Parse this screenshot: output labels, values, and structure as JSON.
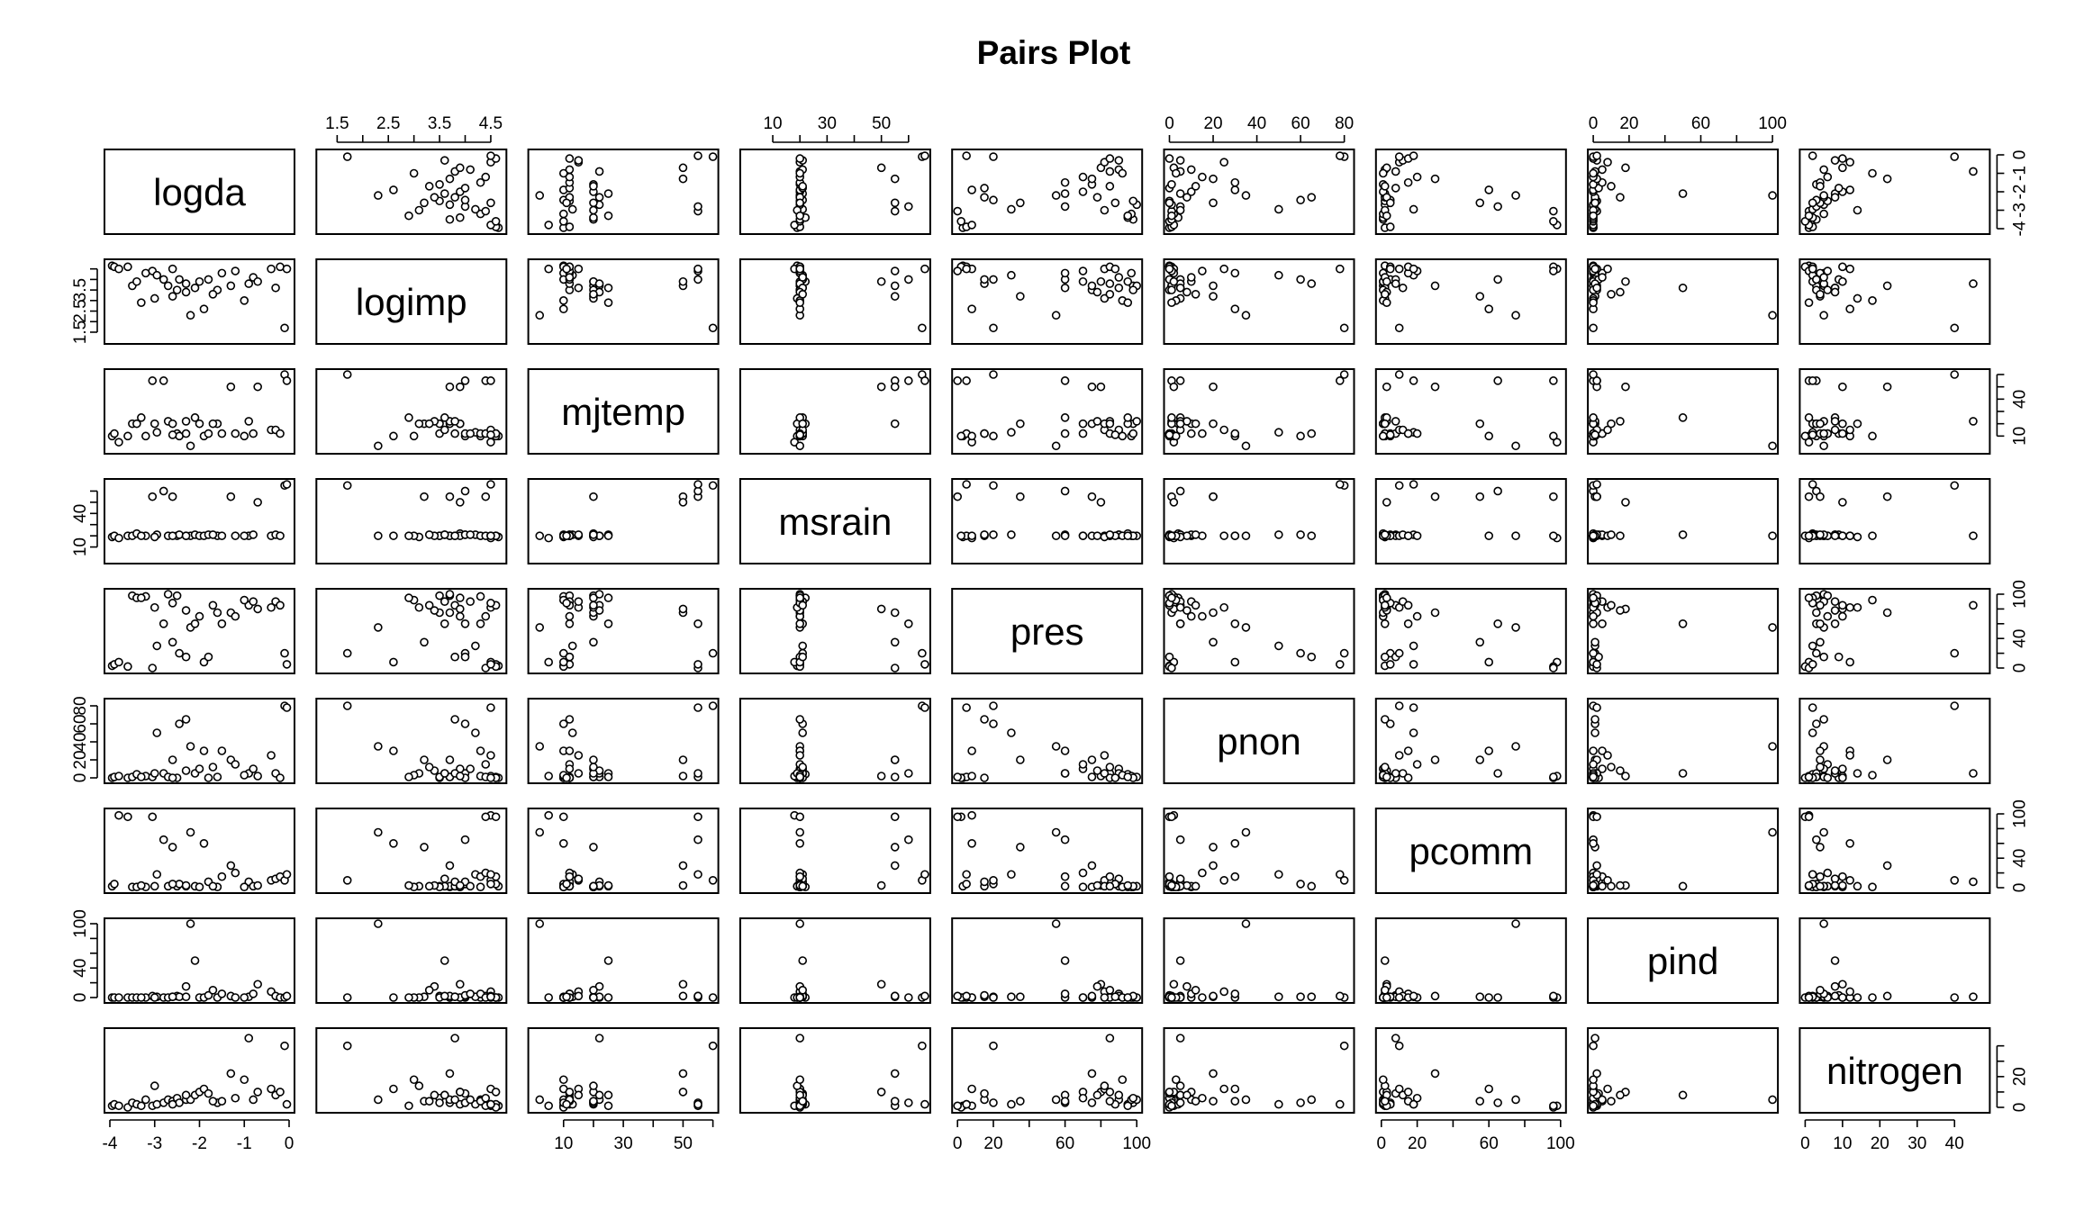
{
  "chart_data": {
    "type": "scatter",
    "title": "Pairs Plot",
    "variables": [
      "logda",
      "logimp",
      "mjtemp",
      "msrain",
      "pres",
      "pnon",
      "pcomm",
      "pind",
      "nitrogen"
    ],
    "axes": {
      "logda": {
        "range": [
          -4,
          0
        ],
        "ticks": [
          -4,
          -3,
          -2,
          -1,
          0
        ],
        "tick_labels": [
          "-4",
          "-3",
          "-2",
          "-1",
          "0"
        ]
      },
      "logimp": {
        "range": [
          1.2,
          4.7
        ],
        "ticks": [
          1.5,
          2,
          2.5,
          3,
          3.5,
          4,
          4.5
        ],
        "tick_labels": [
          "1.5",
          "",
          "2.5",
          "",
          "3.5",
          "",
          "4.5"
        ],
        "left_tick_labels": [
          "1.5",
          "",
          "2.5",
          "",
          "3.5",
          "",
          ""
        ]
      },
      "mjtemp": {
        "range": [
          0,
          60
        ],
        "ticks": [
          10,
          20,
          30,
          40,
          50,
          60
        ],
        "tick_labels": [
          "10",
          "",
          "30",
          "",
          "50",
          ""
        ],
        "right_tick_labels": [
          "10",
          "",
          "",
          "40",
          "",
          ""
        ]
      },
      "msrain": {
        "range": [
          0,
          66
        ],
        "ticks": [
          10,
          20,
          30,
          40,
          50,
          60
        ],
        "tick_labels": [
          "10",
          "",
          "30",
          "",
          "50",
          ""
        ],
        "left_tick_labels": [
          "10",
          "",
          "",
          "40",
          "",
          ""
        ]
      },
      "pres": {
        "range": [
          0,
          100
        ],
        "ticks": [
          0,
          20,
          40,
          60,
          80,
          100
        ],
        "tick_labels": [
          "0",
          "20",
          "",
          "60",
          "",
          "100"
        ],
        "right_tick_labels": [
          "0",
          "",
          "40",
          "",
          "",
          "100"
        ]
      },
      "pnon": {
        "range": [
          0,
          82
        ],
        "ticks": [
          0,
          20,
          40,
          60,
          80
        ],
        "tick_labels": [
          "0",
          "20",
          "40",
          "60",
          "80"
        ],
        "left_tick_labels": [
          "0",
          "20",
          "40",
          "60",
          "80"
        ]
      },
      "pcomm": {
        "range": [
          0,
          100
        ],
        "ticks": [
          0,
          20,
          40,
          60,
          80,
          100
        ],
        "tick_labels": [
          "0",
          "20",
          "",
          "60",
          "",
          "100"
        ],
        "right_tick_labels": [
          "0",
          "",
          "40",
          "",
          "",
          "100"
        ]
      },
      "pind": {
        "range": [
          0,
          100
        ],
        "ticks": [
          0,
          20,
          40,
          60,
          80,
          100
        ],
        "tick_labels": [
          "0",
          "20",
          "",
          "60",
          "",
          "100"
        ],
        "left_tick_labels": [
          "0",
          "",
          "40",
          "",
          "",
          "100"
        ]
      },
      "nitrogen": {
        "range": [
          0,
          48
        ],
        "ticks": [
          0,
          10,
          20,
          30,
          40
        ],
        "tick_labels": [
          "0",
          "10",
          "20",
          "30",
          "40"
        ],
        "right_tick_labels": [
          "0",
          "",
          "20",
          "",
          ""
        ]
      }
    },
    "observations": [
      {
        "logda": -3.95,
        "logimp": 4.65,
        "mjtemp": 10,
        "msrain": 19,
        "pres": 3,
        "pnon": 0,
        "pcomm": 2,
        "pind": 0,
        "nitrogen": 1
      },
      {
        "logda": -3.9,
        "logimp": 4.6,
        "mjtemp": 12,
        "msrain": 20,
        "pres": 5,
        "pnon": 1,
        "pcomm": 5,
        "pind": 0,
        "nitrogen": 2
      },
      {
        "logda": -3.8,
        "logimp": 4.5,
        "mjtemp": 5,
        "msrain": 18,
        "pres": 8,
        "pnon": 2,
        "pcomm": 98,
        "pind": 0,
        "nitrogen": 1
      },
      {
        "logda": -3.6,
        "logimp": 4.6,
        "mjtemp": 10,
        "msrain": 20,
        "pres": 2,
        "pnon": 0,
        "pcomm": 96,
        "pind": 0,
        "nitrogen": 0
      },
      {
        "logda": -3.5,
        "logimp": 3.7,
        "mjtemp": 20,
        "msrain": 20,
        "pres": 98,
        "pnon": 1,
        "pcomm": 1,
        "pind": 0,
        "nitrogen": 3
      },
      {
        "logda": -3.4,
        "logimp": 3.9,
        "mjtemp": 20,
        "msrain": 22,
        "pres": 95,
        "pnon": 4,
        "pcomm": 1,
        "pind": 0,
        "nitrogen": 2
      },
      {
        "logda": -3.2,
        "logimp": 4.3,
        "mjtemp": 10,
        "msrain": 20,
        "pres": 97,
        "pnon": 2,
        "pcomm": 1,
        "pind": 0,
        "nitrogen": 5
      },
      {
        "logda": -3.05,
        "logimp": 4.4,
        "mjtemp": 55,
        "msrain": 55,
        "pres": 0,
        "pnon": 1,
        "pcomm": 96,
        "pind": 2,
        "nitrogen": 1
      },
      {
        "logda": -2.95,
        "logimp": 4.2,
        "mjtemp": 13,
        "msrain": 21,
        "pres": 30,
        "pnon": 50,
        "pcomm": 18,
        "pind": 1,
        "nitrogen": 2
      },
      {
        "logda": -2.8,
        "logimp": 4.0,
        "mjtemp": 55,
        "msrain": 60,
        "pres": 60,
        "pnon": 5,
        "pcomm": 65,
        "pind": 0,
        "nitrogen": 3
      },
      {
        "logda": -2.7,
        "logimp": 3.7,
        "mjtemp": 22,
        "msrain": 20,
        "pres": 100,
        "pnon": 1,
        "pcomm": 2,
        "pind": 0,
        "nitrogen": 5
      },
      {
        "logda": -2.6,
        "logimp": 3.2,
        "mjtemp": 20,
        "msrain": 55,
        "pres": 35,
        "pnon": 20,
        "pcomm": 55,
        "pind": 1,
        "nitrogen": 4
      },
      {
        "logda": -2.5,
        "logimp": 3.5,
        "mjtemp": 12,
        "msrain": 20,
        "pres": 98,
        "pnon": 0,
        "pcomm": 2,
        "pind": 2,
        "nitrogen": 6
      },
      {
        "logda": -2.45,
        "logimp": 4.0,
        "mjtemp": 10,
        "msrain": 21,
        "pres": 20,
        "pnon": 60,
        "pcomm": 5,
        "pind": 1,
        "nitrogen": 3
      },
      {
        "logda": -2.3,
        "logimp": 3.8,
        "mjtemp": 12,
        "msrain": 20,
        "pres": 15,
        "pnon": 65,
        "pcomm": 2,
        "pind": 1,
        "nitrogen": 5
      },
      {
        "logda": -2.2,
        "logimp": 2.3,
        "mjtemp": 2,
        "msrain": 20,
        "pres": 55,
        "pnon": 35,
        "pcomm": 75,
        "pind": 100,
        "nitrogen": 5
      },
      {
        "logda": -2.1,
        "logimp": 3.6,
        "mjtemp": 25,
        "msrain": 21,
        "pres": 60,
        "pnon": 5,
        "pcomm": 2,
        "pind": 50,
        "nitrogen": 8
      },
      {
        "logda": -2.0,
        "logimp": 3.9,
        "mjtemp": 20,
        "msrain": 20,
        "pres": 70,
        "pnon": 10,
        "pcomm": 1,
        "pind": 0,
        "nitrogen": 10
      },
      {
        "logda": -1.9,
        "logimp": 2.6,
        "mjtemp": 10,
        "msrain": 20,
        "pres": 8,
        "pnon": 30,
        "pcomm": 60,
        "pind": 0,
        "nitrogen": 12
      },
      {
        "logda": -1.8,
        "logimp": 4.0,
        "mjtemp": 12,
        "msrain": 21,
        "pres": 15,
        "pnon": 0,
        "pcomm": 8,
        "pind": 3,
        "nitrogen": 9
      },
      {
        "logda": -1.6,
        "logimp": 3.5,
        "mjtemp": 20,
        "msrain": 20,
        "pres": 75,
        "pnon": 1,
        "pcomm": 1,
        "pind": 0,
        "nitrogen": 3
      },
      {
        "logda": -1.5,
        "logimp": 4.3,
        "mjtemp": 12,
        "msrain": 20,
        "pres": 60,
        "pnon": 30,
        "pcomm": 15,
        "pind": 5,
        "nitrogen": 4
      },
      {
        "logda": -1.3,
        "logimp": 3.7,
        "mjtemp": 50,
        "msrain": 55,
        "pres": 75,
        "pnon": 20,
        "pcomm": 30,
        "pind": 2,
        "nitrogen": 22
      },
      {
        "logda": -1.2,
        "logimp": 4.4,
        "mjtemp": 12,
        "msrain": 20,
        "pres": 70,
        "pnon": 15,
        "pcomm": 20,
        "pind": 0,
        "nitrogen": 6
      },
      {
        "logda": -0.9,
        "logimp": 3.8,
        "mjtemp": 22,
        "msrain": 20,
        "pres": 85,
        "pnon": 5,
        "pcomm": 8,
        "pind": 1,
        "nitrogen": 45
      },
      {
        "logda": -0.8,
        "logimp": 4.1,
        "mjtemp": 12,
        "msrain": 21,
        "pres": 90,
        "pnon": 10,
        "pcomm": 2,
        "pind": 5,
        "nitrogen": 5
      },
      {
        "logda": -0.7,
        "logimp": 3.9,
        "mjtemp": 50,
        "msrain": 50,
        "pres": 80,
        "pnon": 2,
        "pcomm": 3,
        "pind": 18,
        "nitrogen": 10
      },
      {
        "logda": -0.4,
        "logimp": 4.5,
        "mjtemp": 15,
        "msrain": 20,
        "pres": 82,
        "pnon": 25,
        "pcomm": 10,
        "pind": 8,
        "nitrogen": 12
      },
      {
        "logda": -0.3,
        "logimp": 3.6,
        "mjtemp": 15,
        "msrain": 21,
        "pres": 90,
        "pnon": 5,
        "pcomm": 12,
        "pind": 2,
        "nitrogen": 8
      },
      {
        "logda": -0.2,
        "logimp": 4.6,
        "mjtemp": 12,
        "msrain": 20,
        "pres": 85,
        "pnon": 0,
        "pcomm": 15,
        "pind": 0,
        "nitrogen": 10
      },
      {
        "logda": -0.1,
        "logimp": 1.7,
        "mjtemp": 60,
        "msrain": 65,
        "pres": 20,
        "pnon": 80,
        "pcomm": 10,
        "pind": 0,
        "nitrogen": 40
      },
      {
        "logda": -0.05,
        "logimp": 4.5,
        "mjtemp": 55,
        "msrain": 66,
        "pres": 5,
        "pnon": 78,
        "pcomm": 18,
        "pind": 2,
        "nitrogen": 2
      },
      {
        "logda": -2.3,
        "logimp": 3.4,
        "mjtemp": 22,
        "msrain": 20,
        "pres": 78,
        "pnon": 8,
        "pcomm": 3,
        "pind": 15,
        "nitrogen": 8
      },
      {
        "logda": -3.0,
        "logimp": 3.1,
        "mjtemp": 20,
        "msrain": 19,
        "pres": 82,
        "pnon": 5,
        "pcomm": 2,
        "pind": 0,
        "nitrogen": 14
      },
      {
        "logda": -1.0,
        "logimp": 3.0,
        "mjtemp": 10,
        "msrain": 20,
        "pres": 92,
        "pnon": 3,
        "pcomm": 1,
        "pind": 0,
        "nitrogen": 18
      },
      {
        "logda": -2.6,
        "logimp": 4.5,
        "mjtemp": 11,
        "msrain": 20,
        "pres": 88,
        "pnon": 0,
        "pcomm": 5,
        "pind": 1,
        "nitrogen": 2
      },
      {
        "logda": -3.3,
        "logimp": 2.9,
        "mjtemp": 25,
        "msrain": 20,
        "pres": 95,
        "pnon": 1,
        "pcomm": 3,
        "pind": 0,
        "nitrogen": 1
      },
      {
        "logda": -1.7,
        "logimp": 3.3,
        "mjtemp": 20,
        "msrain": 21,
        "pres": 85,
        "pnon": 12,
        "pcomm": 2,
        "pind": 10,
        "nitrogen": 4
      }
    ]
  }
}
